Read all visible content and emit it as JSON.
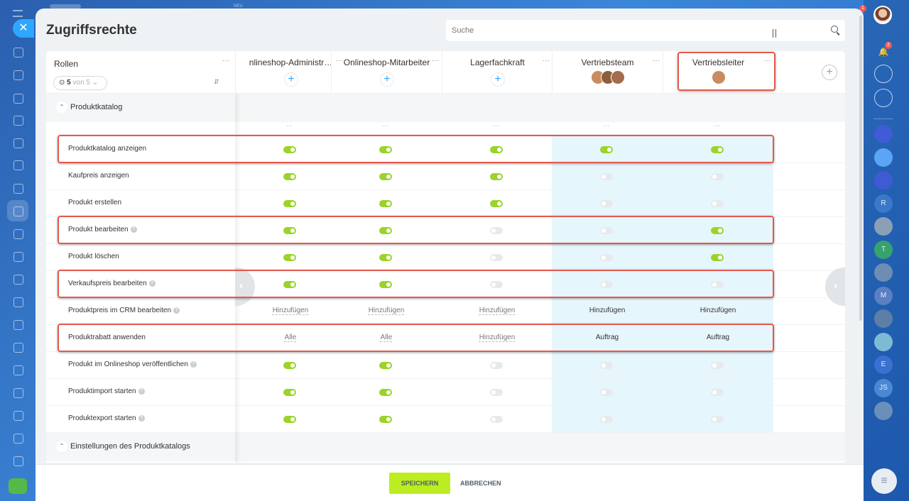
{
  "app": {
    "top_label": "NEU",
    "close_glyph": "✕",
    "notify_badge": "1"
  },
  "left_sidebar": {
    "icons": [
      "menu-icon",
      "widget-icon",
      "feed-icon",
      "chat-icon",
      "calendar-icon",
      "documents-icon",
      "tasks-icon",
      "crm-card-icon",
      "crm-funnel-icon",
      "mail-icon",
      "contacts-icon",
      "shield-icon",
      "sites-icon",
      "automation-icon",
      "analytics-icon",
      "shop-icon",
      "booking-icon",
      "robot-icon",
      "inventory-icon",
      "settings-icon",
      "rocket-icon"
    ]
  },
  "right_sidebar": {
    "bell_badge": "2",
    "chats": [
      {
        "initial": "",
        "name": "crm-chat-icon"
      },
      {
        "initial": "",
        "name": "chat-blue-icon"
      },
      {
        "initial": "",
        "name": "openline-icon"
      },
      {
        "initial": "R",
        "name": "chat-r"
      },
      {
        "initial": "",
        "name": "chat-photo-1"
      },
      {
        "initial": "T",
        "name": "chat-t"
      },
      {
        "initial": "",
        "name": "chat-photo-2"
      },
      {
        "initial": "M",
        "name": "chat-m"
      },
      {
        "initial": "",
        "name": "chat-photo-3"
      },
      {
        "initial": "",
        "name": "chat-photo-4"
      },
      {
        "initial": "E",
        "name": "chat-e"
      },
      {
        "initial": "JS",
        "name": "chat-js"
      },
      {
        "initial": "",
        "name": "chat-photo-5"
      }
    ]
  },
  "page": {
    "title": "Zugriffsrechte",
    "search_placeholder": "Suche"
  },
  "header": {
    "roles_label": "Rollen",
    "filter_count": "5",
    "filter_of": "von 5",
    "more_glyph": "···",
    "add_glyph": "+",
    "columns": [
      {
        "name": "Onlineshop-Administrator",
        "display": "nlineshop-Administr…",
        "members": 0
      },
      {
        "name": "Onlineshop-Mitarbeiter",
        "display": "Onlineshop-Mitarbeiter",
        "members": 0
      },
      {
        "name": "Lagerfachkraft",
        "display": "Lagerfachkraft",
        "members": 0
      },
      {
        "name": "Vertriebsteam",
        "display": "Vertriebsteam",
        "members": 3
      },
      {
        "name": "Vertriebsleiter",
        "display": "Vertriebsleiter",
        "members": 1
      }
    ]
  },
  "sections": [
    {
      "label": "Produktkatalog",
      "expanded": true
    },
    {
      "label": "Einstellungen des Produktkatalogs",
      "expanded": false
    }
  ],
  "rows": [
    {
      "label": "Produktkatalog anzeigen",
      "help": false,
      "cells": [
        [
          "t",
          1
        ],
        [
          "t",
          1
        ],
        [
          "t",
          1
        ],
        [
          "t",
          1
        ],
        [
          "t",
          1
        ]
      ]
    },
    {
      "label": "Kaufpreis anzeigen",
      "help": false,
      "cells": [
        [
          "t",
          1
        ],
        [
          "t",
          1
        ],
        [
          "t",
          1
        ],
        [
          "t",
          0
        ],
        [
          "t",
          0
        ]
      ]
    },
    {
      "label": "Produkt erstellen",
      "help": false,
      "cells": [
        [
          "t",
          1
        ],
        [
          "t",
          1
        ],
        [
          "t",
          1
        ],
        [
          "t",
          0
        ],
        [
          "t",
          0
        ]
      ]
    },
    {
      "label": "Produkt bearbeiten",
      "help": true,
      "cells": [
        [
          "t",
          1
        ],
        [
          "t",
          1
        ],
        [
          "t",
          0
        ],
        [
          "t",
          0
        ],
        [
          "t",
          1
        ]
      ]
    },
    {
      "label": "Produkt löschen",
      "help": false,
      "cells": [
        [
          "t",
          1
        ],
        [
          "t",
          1
        ],
        [
          "t",
          0
        ],
        [
          "t",
          0
        ],
        [
          "t",
          1
        ]
      ]
    },
    {
      "label": "Verkaufspreis bearbeiten",
      "help": true,
      "cells": [
        [
          "t",
          1
        ],
        [
          "t",
          1
        ],
        [
          "t",
          0
        ],
        [
          "t",
          0
        ],
        [
          "t",
          0
        ]
      ]
    },
    {
      "label": "Produktpreis im CRM bearbeiten",
      "help": true,
      "cells": [
        [
          "s",
          "Hinzufügen",
          1
        ],
        [
          "s",
          "Hinzufügen",
          1
        ],
        [
          "s",
          "Hinzufügen",
          1
        ],
        [
          "s",
          "Hinzufügen",
          0
        ],
        [
          "s",
          "Hinzufügen",
          0
        ]
      ]
    },
    {
      "label": "Produktrabatt anwenden",
      "help": false,
      "cells": [
        [
          "s",
          "Alle",
          1
        ],
        [
          "s",
          "Alle",
          1
        ],
        [
          "s",
          "Hinzufügen",
          1
        ],
        [
          "s",
          "Auftrag",
          0
        ],
        [
          "s",
          "Auftrag",
          0
        ]
      ]
    },
    {
      "label": "Produkt im Onlineshop veröffentlichen",
      "help": true,
      "cells": [
        [
          "t",
          1
        ],
        [
          "t",
          1
        ],
        [
          "t",
          0
        ],
        [
          "t",
          0
        ],
        [
          "t",
          0
        ]
      ]
    },
    {
      "label": "Produktimport starten",
      "help": true,
      "cells": [
        [
          "t",
          1
        ],
        [
          "t",
          1
        ],
        [
          "t",
          0
        ],
        [
          "t",
          0
        ],
        [
          "t",
          0
        ]
      ]
    },
    {
      "label": "Produktexport starten",
      "help": true,
      "cells": [
        [
          "t",
          1
        ],
        [
          "t",
          1
        ],
        [
          "t",
          0
        ],
        [
          "t",
          0
        ],
        [
          "t",
          0
        ]
      ]
    }
  ],
  "footer": {
    "save_label": "SPEICHERN",
    "cancel_label": "ABBRECHEN"
  },
  "colors": {
    "toggle_on": "#9bd32a",
    "toggle_off": "#e7eaed",
    "highlight": "#e4594e",
    "selected_column_bg": "#e6f6fd",
    "save_button": "#bbed21"
  }
}
